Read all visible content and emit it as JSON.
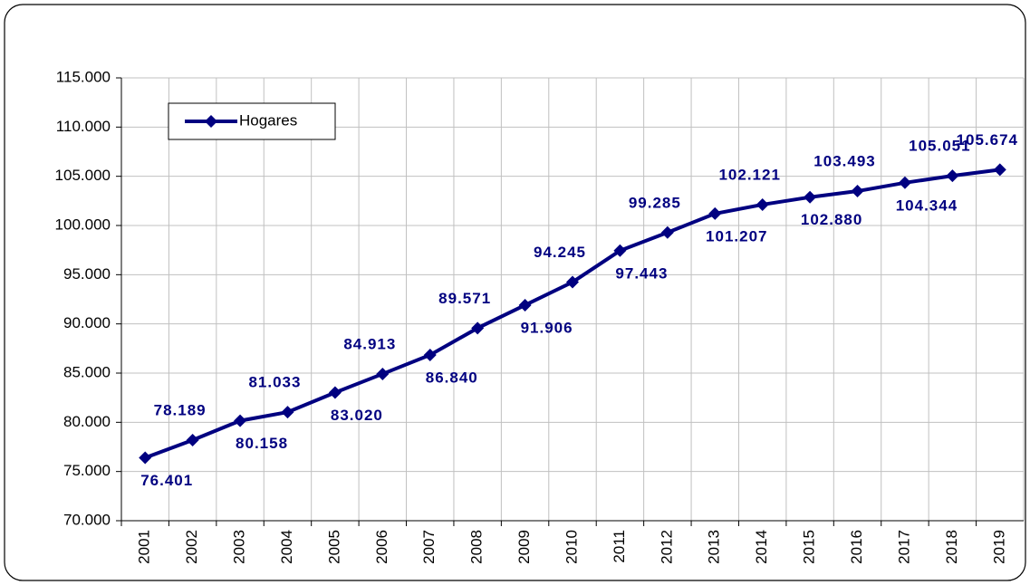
{
  "chart_data": {
    "type": "line",
    "categories": [
      "2001",
      "2002",
      "2003",
      "2004",
      "2005",
      "2006",
      "2007",
      "2008",
      "2009",
      "2010",
      "2011",
      "2012",
      "2013",
      "2014",
      "2015",
      "2016",
      "2017",
      "2018",
      "2019"
    ],
    "series": [
      {
        "name": "Hogares",
        "color": "#000080",
        "values": [
          76401,
          78189,
          80158,
          81033,
          83020,
          84913,
          86840,
          89571,
          91906,
          94245,
          97443,
          99285,
          101207,
          102121,
          102880,
          103493,
          104344,
          105051,
          105674
        ],
        "value_labels": [
          "76.401",
          "78.189",
          "80.158",
          "81.033",
          "83.020",
          "84.913",
          "86.840",
          "89.571",
          "91.906",
          "94.245",
          "97.443",
          "99.285",
          "101.207",
          "102.121",
          "102.880",
          "103.493",
          "104.344",
          "105.051",
          "105.674"
        ]
      }
    ],
    "ylim": [
      70000,
      115000
    ],
    "yticks": [
      {
        "value": 70000,
        "label": "70.000"
      },
      {
        "value": 75000,
        "label": "75.000"
      },
      {
        "value": 80000,
        "label": "80.000"
      },
      {
        "value": 85000,
        "label": "85.000"
      },
      {
        "value": 90000,
        "label": "90.000"
      },
      {
        "value": 95000,
        "label": "95.000"
      },
      {
        "value": 100000,
        "label": "100.000"
      },
      {
        "value": 105000,
        "label": "105.000"
      },
      {
        "value": 110000,
        "label": "110.000"
      },
      {
        "value": 115000,
        "label": "115.000"
      }
    ],
    "grid": true,
    "legend": "top-left"
  }
}
